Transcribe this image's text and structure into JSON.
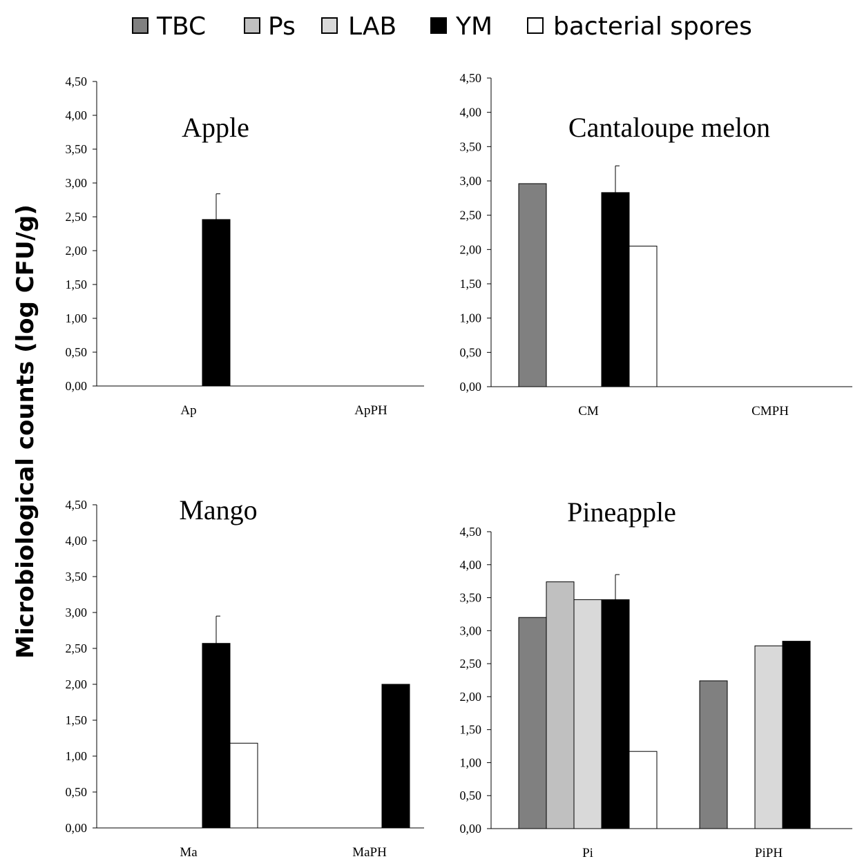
{
  "legend": [
    {
      "label": "TBC",
      "color": "#808080"
    },
    {
      "label": "Ps",
      "color": "#c0c0c0"
    },
    {
      "label": "LAB",
      "color": "#d9d9d9"
    },
    {
      "label": "YM",
      "color": "#000000"
    },
    {
      "label": "bacterial spores",
      "color": "#ffffff"
    }
  ],
  "ylabel": "Microbiological counts (log CFU/g)",
  "chart_data": [
    {
      "type": "bar",
      "title": "Apple",
      "categories": [
        "Ap",
        "ApPH"
      ],
      "ylim": [
        0,
        4.5
      ],
      "yticks": [
        "0,00",
        "0,50",
        "1,00",
        "1,50",
        "2,00",
        "2,50",
        "3,00",
        "3,50",
        "4,00",
        "4,50"
      ],
      "series": [
        {
          "name": "TBC",
          "values": [
            0,
            0
          ]
        },
        {
          "name": "Ps",
          "values": [
            0,
            0
          ]
        },
        {
          "name": "LAB",
          "values": [
            0,
            0
          ]
        },
        {
          "name": "YM",
          "values": [
            2.46,
            0
          ],
          "errors": [
            0.38,
            0
          ]
        },
        {
          "name": "bacterial spores",
          "values": [
            0,
            0
          ]
        }
      ]
    },
    {
      "type": "bar",
      "title": "Cantaloupe melon",
      "categories": [
        "CM",
        "CMPH"
      ],
      "ylim": [
        0,
        4.5
      ],
      "yticks": [
        "0,00",
        "0,50",
        "1,00",
        "1,50",
        "2,00",
        "2,50",
        "3,00",
        "3,50",
        "4,00",
        "4,50"
      ],
      "series": [
        {
          "name": "TBC",
          "values": [
            2.96,
            0
          ]
        },
        {
          "name": "Ps",
          "values": [
            0,
            0
          ]
        },
        {
          "name": "LAB",
          "values": [
            0,
            0
          ]
        },
        {
          "name": "YM",
          "values": [
            2.83,
            0
          ],
          "errors": [
            0.39,
            0
          ]
        },
        {
          "name": "bacterial spores",
          "values": [
            2.05,
            0
          ]
        }
      ]
    },
    {
      "type": "bar",
      "title": "Mango",
      "categories": [
        "Ma",
        "MaPH"
      ],
      "ylim": [
        0,
        4.5
      ],
      "yticks": [
        "0,00",
        "0,50",
        "1,00",
        "1,50",
        "2,00",
        "2,50",
        "3,00",
        "3,50",
        "4,00",
        "4,50"
      ],
      "series": [
        {
          "name": "TBC",
          "values": [
            0,
            0
          ]
        },
        {
          "name": "Ps",
          "values": [
            0,
            0
          ]
        },
        {
          "name": "LAB",
          "values": [
            0,
            0
          ]
        },
        {
          "name": "YM",
          "values": [
            2.57,
            2.0
          ],
          "errors": [
            0.38,
            0
          ]
        },
        {
          "name": "bacterial spores",
          "values": [
            1.18,
            0
          ]
        }
      ]
    },
    {
      "type": "bar",
      "title": "Pineapple",
      "categories": [
        "Pi",
        "PiPH"
      ],
      "ylim": [
        0,
        4.5
      ],
      "yticks": [
        "0,00",
        "0,50",
        "1,00",
        "1,50",
        "2,00",
        "2,50",
        "3,00",
        "3,50",
        "4,00",
        "4,50"
      ],
      "series": [
        {
          "name": "TBC",
          "values": [
            3.2,
            2.24
          ]
        },
        {
          "name": "Ps",
          "values": [
            3.74,
            0
          ]
        },
        {
          "name": "LAB",
          "values": [
            3.47,
            2.77
          ]
        },
        {
          "name": "YM",
          "values": [
            3.47,
            2.84
          ],
          "errors": [
            0.38,
            0
          ]
        },
        {
          "name": "bacterial spores",
          "values": [
            1.17,
            0
          ]
        }
      ]
    }
  ]
}
